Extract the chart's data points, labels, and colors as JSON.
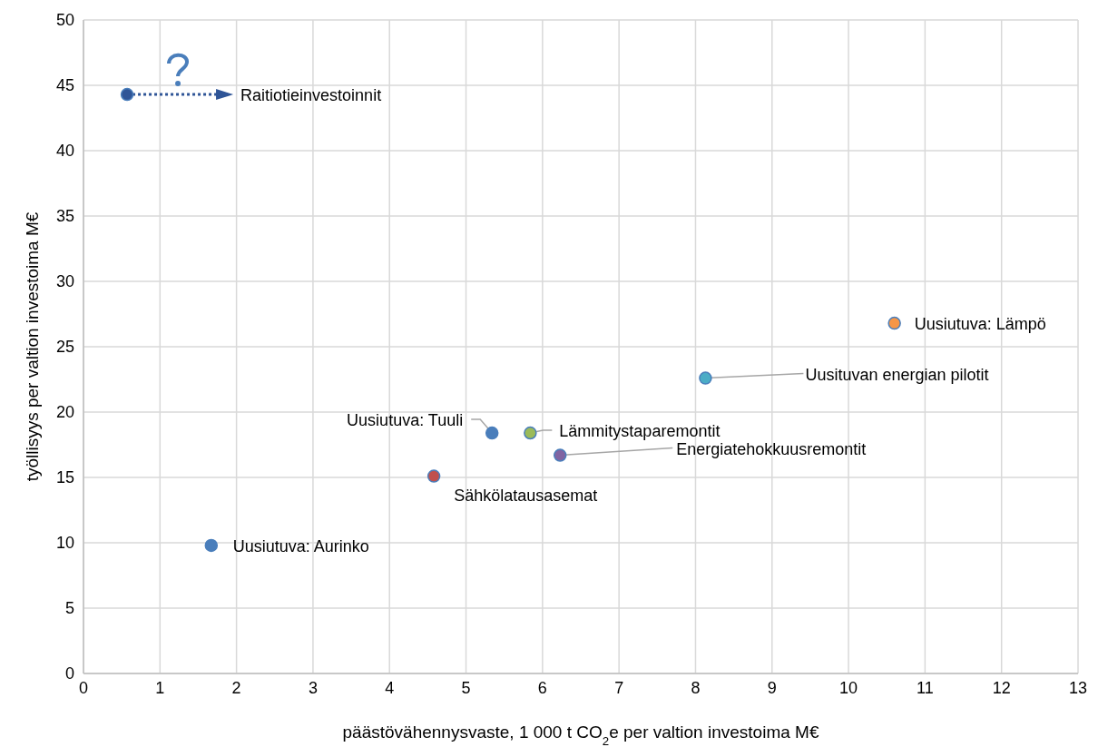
{
  "chart_data": {
    "type": "scatter",
    "xlabel": "päästövähennysvaste, 1 000 t CO$_{2}$e per valtion investoima M€",
    "ylabel": "työllisyys per valtion investoima M€",
    "xlim": [
      0,
      13
    ],
    "xticks": [
      0,
      1,
      2,
      3,
      4,
      5,
      6,
      7,
      8,
      9,
      10,
      11,
      12,
      13
    ],
    "ylim": [
      0,
      50
    ],
    "yticks": [
      0,
      5,
      10,
      15,
      20,
      25,
      30,
      35,
      40,
      45,
      50
    ],
    "grid": true,
    "marker": "circle",
    "series": [
      {
        "name": "Raitiotieinvestoinnit",
        "color": "#2f5597",
        "x": [
          0.57
        ],
        "values": [
          44.3
        ]
      },
      {
        "name": "Uusiutuva: Aurinko",
        "color": "#4a7ebb",
        "x": [
          1.67
        ],
        "values": [
          9.8
        ]
      },
      {
        "name": "Sähkölatausasemat",
        "color": "#c0504d",
        "x": [
          4.58
        ],
        "values": [
          15.1
        ]
      },
      {
        "name": "Uusiutuva: Tuuli",
        "color": "#4a7ebb",
        "x": [
          5.34
        ],
        "values": [
          18.4
        ]
      },
      {
        "name": "Lämmitystaparemontit",
        "color": "#9bbb59",
        "x": [
          5.84
        ],
        "values": [
          18.4
        ]
      },
      {
        "name": "Energiatehokkuusremontit",
        "color": "#8064a2",
        "x": [
          6.23
        ],
        "values": [
          16.7
        ]
      },
      {
        "name": "Uusituvan energian pilotit",
        "color": "#4bacc6",
        "x": [
          8.13
        ],
        "values": [
          22.6
        ]
      },
      {
        "name": "Uusiutuva: Lämpö",
        "color": "#f79646",
        "x": [
          10.6
        ],
        "values": [
          26.8
        ]
      }
    ]
  }
}
